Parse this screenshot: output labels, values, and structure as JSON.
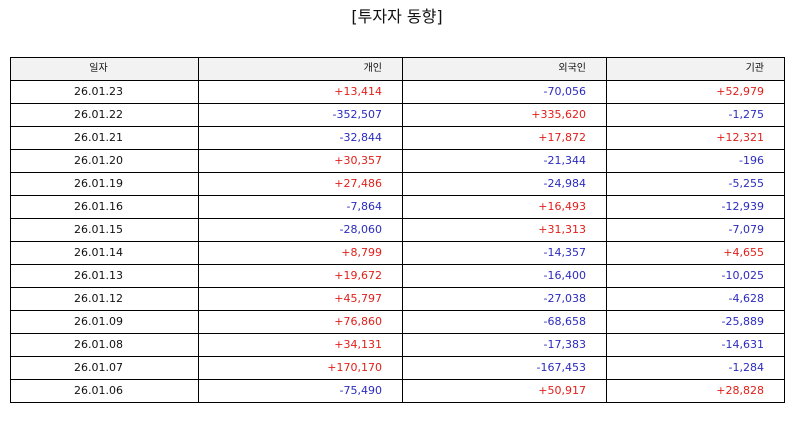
{
  "title": "[투자자 동향]",
  "columns": [
    "일자",
    "개인",
    "외국인",
    "기관"
  ],
  "colors": {
    "positive": "#e0201b",
    "negative": "#2b2bbf"
  },
  "rows": [
    {
      "date": "26.01.23",
      "individual": "+13,414",
      "foreign": "-70,056",
      "institution": "+52,979"
    },
    {
      "date": "26.01.22",
      "individual": "-352,507",
      "foreign": "+335,620",
      "institution": "-1,275"
    },
    {
      "date": "26.01.21",
      "individual": "-32,844",
      "foreign": "+17,872",
      "institution": "+12,321"
    },
    {
      "date": "26.01.20",
      "individual": "+30,357",
      "foreign": "-21,344",
      "institution": "-196"
    },
    {
      "date": "26.01.19",
      "individual": "+27,486",
      "foreign": "-24,984",
      "institution": "-5,255"
    },
    {
      "date": "26.01.16",
      "individual": "-7,864",
      "foreign": "+16,493",
      "institution": "-12,939"
    },
    {
      "date": "26.01.15",
      "individual": "-28,060",
      "foreign": "+31,313",
      "institution": "-7,079"
    },
    {
      "date": "26.01.14",
      "individual": "+8,799",
      "foreign": "-14,357",
      "institution": "+4,655"
    },
    {
      "date": "26.01.13",
      "individual": "+19,672",
      "foreign": "-16,400",
      "institution": "-10,025"
    },
    {
      "date": "26.01.12",
      "individual": "+45,797",
      "foreign": "-27,038",
      "institution": "-4,628"
    },
    {
      "date": "26.01.09",
      "individual": "+76,860",
      "foreign": "-68,658",
      "institution": "-25,889"
    },
    {
      "date": "26.01.08",
      "individual": "+34,131",
      "foreign": "-17,383",
      "institution": "-14,631"
    },
    {
      "date": "26.01.07",
      "individual": "+170,170",
      "foreign": "-167,453",
      "institution": "-1,284"
    },
    {
      "date": "26.01.06",
      "individual": "-75,490",
      "foreign": "+50,917",
      "institution": "+28,828"
    }
  ]
}
